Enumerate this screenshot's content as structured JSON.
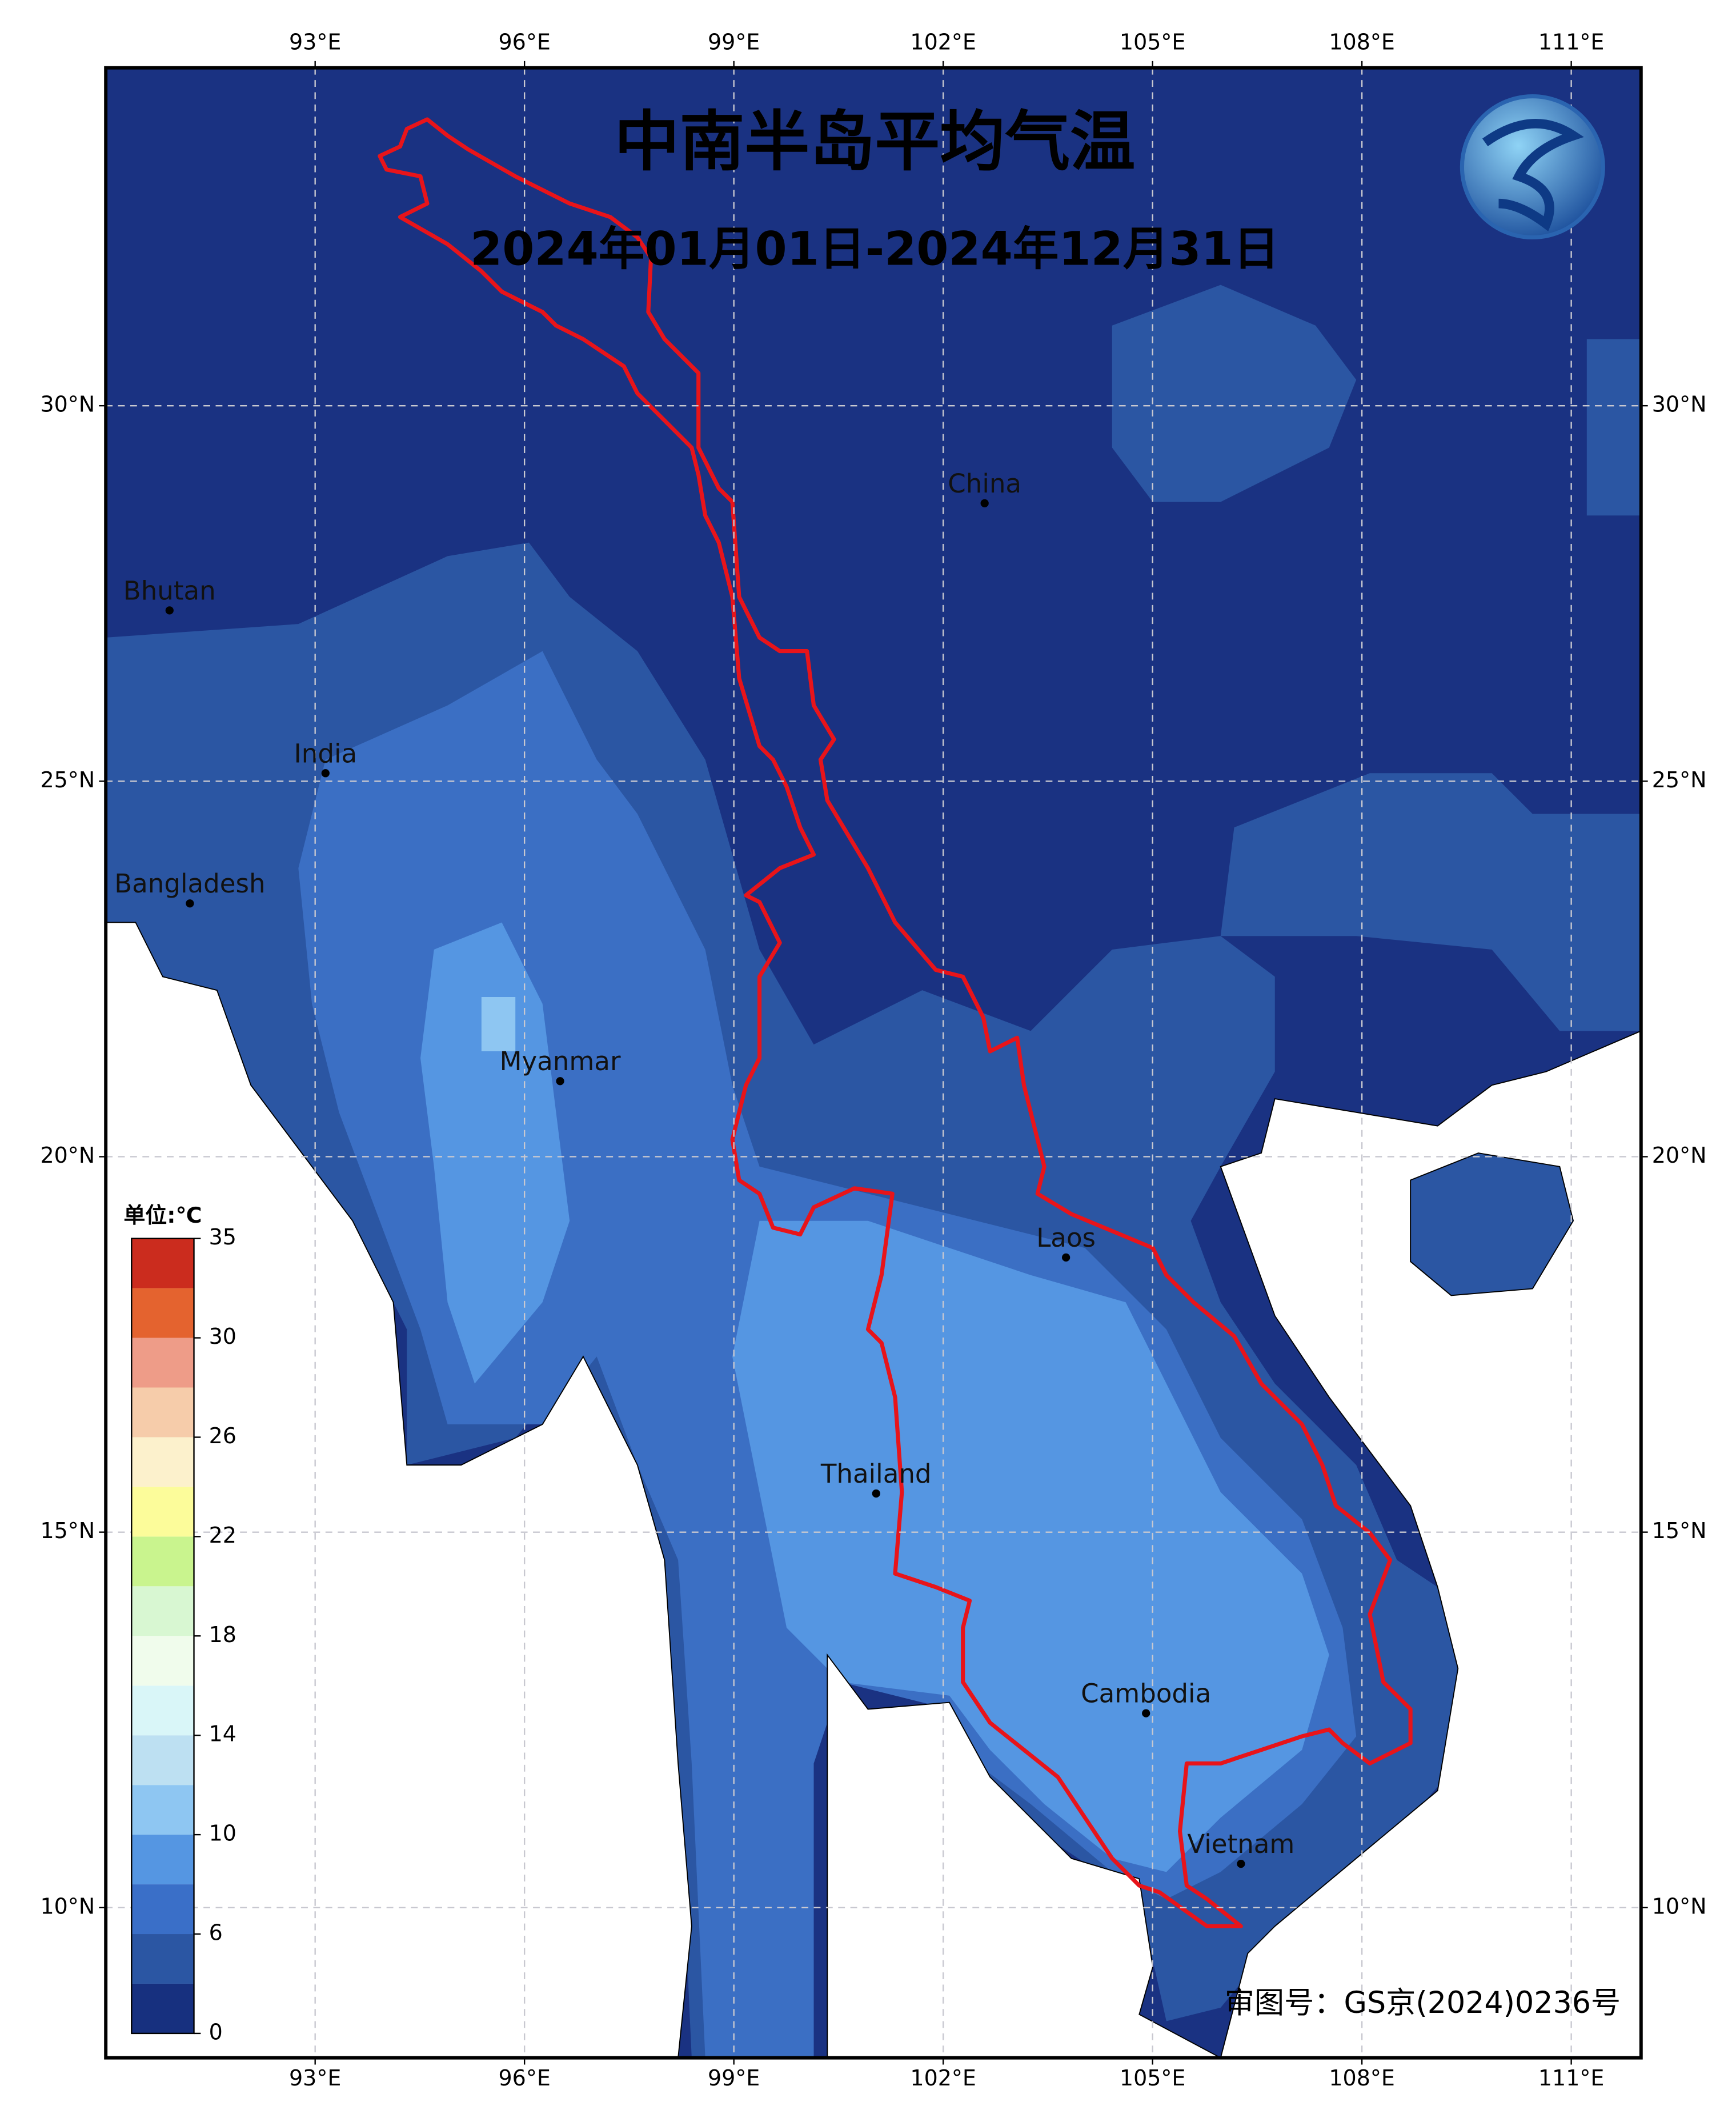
{
  "chart_data": {
    "type": "map",
    "title": "中南半岛平均气温",
    "subtitle": "2024年01月01日-2024年12月31日",
    "xlim": [
      90,
      112
    ],
    "ylim": [
      8,
      34.5
    ],
    "xticks": [
      {
        "value": 93,
        "label": "93°E"
      },
      {
        "value": 96,
        "label": "96°E"
      },
      {
        "value": 99,
        "label": "99°E"
      },
      {
        "value": 102,
        "label": "102°E"
      },
      {
        "value": 105,
        "label": "105°E"
      },
      {
        "value": 108,
        "label": "108°E"
      },
      {
        "value": 111,
        "label": "111°E"
      }
    ],
    "yticks": [
      {
        "value": 10,
        "label": "10°N"
      },
      {
        "value": 15,
        "label": "15°N"
      },
      {
        "value": 20,
        "label": "20°N"
      },
      {
        "value": 25,
        "label": "25°N"
      },
      {
        "value": 30,
        "label": "30°N"
      }
    ],
    "grid": true,
    "countries": [
      "Bhutan",
      "India",
      "Bangladesh",
      "Myanmar",
      "China",
      "Laos",
      "Thailand",
      "Cambodia",
      "Vietnam"
    ],
    "colorbar": {
      "unit": "单位:℃",
      "colors": [
        "#17307f",
        "#2b56a3",
        "#3a6fc8",
        "#5596e2",
        "#8ec6f2",
        "#bde0f2",
        "#d9f6f8",
        "#f0fcec",
        "#d8f7d2",
        "#c9f48e",
        "#fcfc9a",
        "#fcf1cc",
        "#f6ccaa",
        "#ee9c88",
        "#e4632f",
        "#cb2c1e"
      ],
      "ticks": [
        0,
        6,
        10,
        14,
        18,
        22,
        26,
        30,
        35
      ]
    },
    "approval": "审图号：GS京(2024)0236号"
  }
}
